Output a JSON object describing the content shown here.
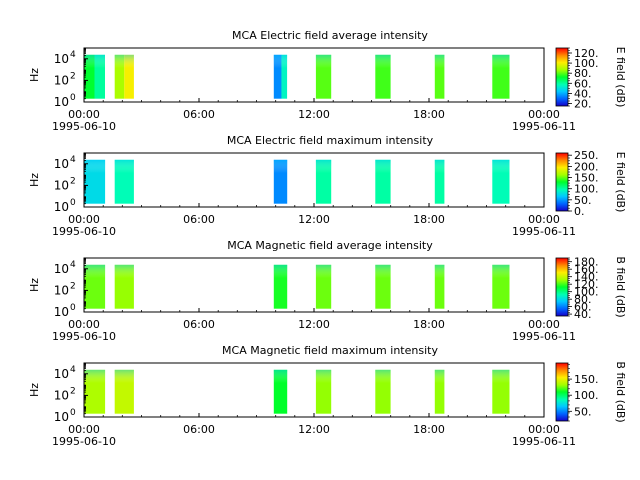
{
  "chart_data": [
    {
      "type": "heatmap",
      "title": "MCA  Electric field average intensity",
      "ylabel": "Hz",
      "ylim": [
        1,
        100000
      ],
      "y_scale": "log",
      "y_ticks": [
        {
          "value": 1,
          "base": "10",
          "exp": "0"
        },
        {
          "value": 100,
          "base": "10",
          "exp": "2"
        },
        {
          "value": 10000,
          "base": "10",
          "exp": "4"
        }
      ],
      "x_ticks": [
        {
          "hour": 0,
          "time": "00:00",
          "date": "1995-06-10"
        },
        {
          "hour": 6,
          "time": "06:00",
          "date": ""
        },
        {
          "hour": 12,
          "time": "12:00",
          "date": ""
        },
        {
          "hour": 18,
          "time": "18:00",
          "date": ""
        },
        {
          "hour": 24,
          "time": "00:00",
          "date": "1995-06-11"
        }
      ],
      "colorbar": {
        "label": "E field (dB)",
        "range": [
          15,
          130
        ],
        "ticks": [
          {
            "value": 20,
            "label": "20."
          },
          {
            "value": 40,
            "label": "40."
          },
          {
            "value": 60,
            "label": "60."
          },
          {
            "value": 80,
            "label": "80."
          },
          {
            "value": 100,
            "label": "100."
          },
          {
            "value": 120,
            "label": "120."
          }
        ]
      },
      "segments": [
        {
          "start_hour": 0.0,
          "end_hour": 0.55,
          "mean_db": 72
        },
        {
          "start_hour": 0.55,
          "end_hour": 1.1,
          "mean_db": 60
        },
        {
          "start_hour": 1.6,
          "end_hour": 2.1,
          "mean_db": 88
        },
        {
          "start_hour": 2.1,
          "end_hour": 2.6,
          "mean_db": 100
        },
        {
          "start_hour": 9.9,
          "end_hour": 10.3,
          "mean_db": 35
        },
        {
          "start_hour": 10.3,
          "end_hour": 10.6,
          "mean_db": 55
        },
        {
          "start_hour": 12.1,
          "end_hour": 12.9,
          "mean_db": 80
        },
        {
          "start_hour": 15.2,
          "end_hour": 16.0,
          "mean_db": 78
        },
        {
          "start_hour": 18.3,
          "end_hour": 18.8,
          "mean_db": 80
        },
        {
          "start_hour": 21.3,
          "end_hour": 22.2,
          "mean_db": 78
        }
      ]
    },
    {
      "type": "heatmap",
      "title": "MCA  Electric field maximum intensity",
      "ylabel": "Hz",
      "ylim": [
        1,
        100000
      ],
      "y_scale": "log",
      "y_ticks": [
        {
          "value": 1,
          "base": "10",
          "exp": "0"
        },
        {
          "value": 100,
          "base": "10",
          "exp": "2"
        },
        {
          "value": 10000,
          "base": "10",
          "exp": "4"
        }
      ],
      "x_ticks": [
        {
          "hour": 0,
          "time": "00:00",
          "date": "1995-06-10"
        },
        {
          "hour": 6,
          "time": "06:00",
          "date": ""
        },
        {
          "hour": 12,
          "time": "12:00",
          "date": ""
        },
        {
          "hour": 18,
          "time": "18:00",
          "date": ""
        },
        {
          "hour": 24,
          "time": "00:00",
          "date": "1995-06-11"
        }
      ],
      "colorbar": {
        "label": "E field (dB)",
        "range": [
          0,
          260
        ],
        "ticks": [
          {
            "value": 0,
            "label": "0."
          },
          {
            "value": 50,
            "label": "50."
          },
          {
            "value": 100,
            "label": "100."
          },
          {
            "value": 150,
            "label": "150."
          },
          {
            "value": 200,
            "label": "200."
          },
          {
            "value": 250,
            "label": "250."
          }
        ]
      },
      "segments": [
        {
          "start_hour": 0.0,
          "end_hour": 1.1,
          "mean_db": 75
        },
        {
          "start_hour": 1.6,
          "end_hour": 2.6,
          "mean_db": 95
        },
        {
          "start_hour": 9.9,
          "end_hour": 10.6,
          "mean_db": 45
        },
        {
          "start_hour": 12.1,
          "end_hour": 12.9,
          "mean_db": 100
        },
        {
          "start_hour": 15.2,
          "end_hour": 16.0,
          "mean_db": 100
        },
        {
          "start_hour": 18.3,
          "end_hour": 18.8,
          "mean_db": 100
        },
        {
          "start_hour": 21.3,
          "end_hour": 22.2,
          "mean_db": 95
        }
      ]
    },
    {
      "type": "heatmap",
      "title": "MCA  Magnetic field average intensity",
      "ylabel": "Hz",
      "ylim": [
        1,
        100000
      ],
      "y_scale": "log",
      "y_ticks": [
        {
          "value": 1,
          "base": "10",
          "exp": "0"
        },
        {
          "value": 100,
          "base": "10",
          "exp": "2"
        },
        {
          "value": 10000,
          "base": "10",
          "exp": "4"
        }
      ],
      "x_ticks": [
        {
          "hour": 0,
          "time": "00:00",
          "date": "1995-06-10"
        },
        {
          "hour": 6,
          "time": "06:00",
          "date": ""
        },
        {
          "hour": 12,
          "time": "12:00",
          "date": ""
        },
        {
          "hour": 18,
          "time": "18:00",
          "date": ""
        },
        {
          "hour": 24,
          "time": "00:00",
          "date": "1995-06-11"
        }
      ],
      "colorbar": {
        "label": "B field (dB)",
        "range": [
          35,
          190
        ],
        "ticks": [
          {
            "value": 40,
            "label": "40."
          },
          {
            "value": 60,
            "label": "60."
          },
          {
            "value": 80,
            "label": "80."
          },
          {
            "value": 100,
            "label": "100."
          },
          {
            "value": 120,
            "label": "120."
          },
          {
            "value": 140,
            "label": "140."
          },
          {
            "value": 160,
            "label": "160."
          },
          {
            "value": 180,
            "label": "180."
          }
        ]
      },
      "segments": [
        {
          "start_hour": 0.0,
          "end_hour": 1.1,
          "mean_db": 125
        },
        {
          "start_hour": 1.6,
          "end_hour": 2.6,
          "mean_db": 130
        },
        {
          "start_hour": 9.9,
          "end_hour": 10.6,
          "mean_db": 115
        },
        {
          "start_hour": 12.1,
          "end_hour": 12.9,
          "mean_db": 125
        },
        {
          "start_hour": 15.2,
          "end_hour": 16.0,
          "mean_db": 125
        },
        {
          "start_hour": 18.3,
          "end_hour": 18.8,
          "mean_db": 125
        },
        {
          "start_hour": 21.3,
          "end_hour": 22.2,
          "mean_db": 125
        }
      ]
    },
    {
      "type": "heatmap",
      "title": "MCA  Magnetic field maximum intensity",
      "ylabel": "Hz",
      "ylim": [
        1,
        100000
      ],
      "y_scale": "log",
      "y_ticks": [
        {
          "value": 1,
          "base": "10",
          "exp": "0"
        },
        {
          "value": 100,
          "base": "10",
          "exp": "2"
        },
        {
          "value": 10000,
          "base": "10",
          "exp": "4"
        }
      ],
      "x_ticks": [
        {
          "hour": 0,
          "time": "00:00",
          "date": "1995-06-10"
        },
        {
          "hour": 6,
          "time": "06:00",
          "date": ""
        },
        {
          "hour": 12,
          "time": "12:00",
          "date": ""
        },
        {
          "hour": 18,
          "time": "18:00",
          "date": ""
        },
        {
          "hour": 24,
          "time": "00:00",
          "date": "1995-06-11"
        }
      ],
      "colorbar": {
        "label": "B field (dB)",
        "range": [
          20,
          200
        ],
        "ticks": [
          {
            "value": 50,
            "label": "50."
          },
          {
            "value": 100,
            "label": "100."
          },
          {
            "value": 150,
            "label": "150."
          }
        ]
      },
      "segments": [
        {
          "start_hour": 0.0,
          "end_hour": 1.1,
          "mean_db": 135
        },
        {
          "start_hour": 1.6,
          "end_hour": 2.6,
          "mean_db": 140
        },
        {
          "start_hour": 9.9,
          "end_hour": 10.6,
          "mean_db": 110
        },
        {
          "start_hour": 12.1,
          "end_hour": 12.9,
          "mean_db": 130
        },
        {
          "start_hour": 15.2,
          "end_hour": 16.0,
          "mean_db": 130
        },
        {
          "start_hour": 18.3,
          "end_hour": 18.8,
          "mean_db": 130
        },
        {
          "start_hour": 21.3,
          "end_hour": 22.2,
          "mean_db": 130
        }
      ]
    }
  ]
}
